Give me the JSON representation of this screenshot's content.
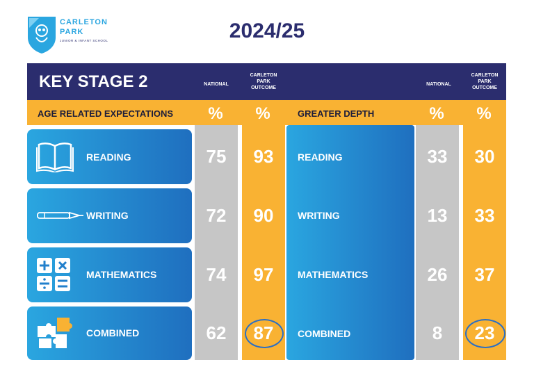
{
  "logo": {
    "line1": "CARLETON",
    "line2": "PARK",
    "line3": "JUNIOR & INFANT SCHOOL"
  },
  "year": "2024/25",
  "header": {
    "title": "KEY STAGE 2",
    "national": "NATIONAL",
    "carleton": "CARLETON PARK OUTCOME"
  },
  "sections": {
    "are_title": "AGE RELATED EXPECTATIONS",
    "gd_title": "GREATER DEPTH",
    "pct": "%"
  },
  "are_rows": [
    {
      "label": "READING",
      "national": "75",
      "carleton": "93"
    },
    {
      "label": "WRITING",
      "national": "72",
      "carleton": "90"
    },
    {
      "label": "MATHEMATICS",
      "national": "74",
      "carleton": "97"
    },
    {
      "label": "COMBINED",
      "national": "62",
      "carleton": "87"
    }
  ],
  "gd_rows": [
    {
      "label": "READING",
      "national": "33",
      "carleton": "30"
    },
    {
      "label": "WRITING",
      "national": "13",
      "carleton": "33"
    },
    {
      "label": "MATHEMATICS",
      "national": "26",
      "carleton": "37"
    },
    {
      "label": "COMBINED",
      "national": "8",
      "carleton": "23"
    }
  ],
  "colors": {
    "navy": "#2b2d6e",
    "yellow": "#f9b233",
    "grey": "#c6c6c6",
    "blue_light": "#2aa6e0",
    "blue_dark": "#1f6fbf"
  },
  "icons": [
    "open-book-icon",
    "pen-icon",
    "math-symbols-icon",
    "puzzle-pieces-icon"
  ]
}
